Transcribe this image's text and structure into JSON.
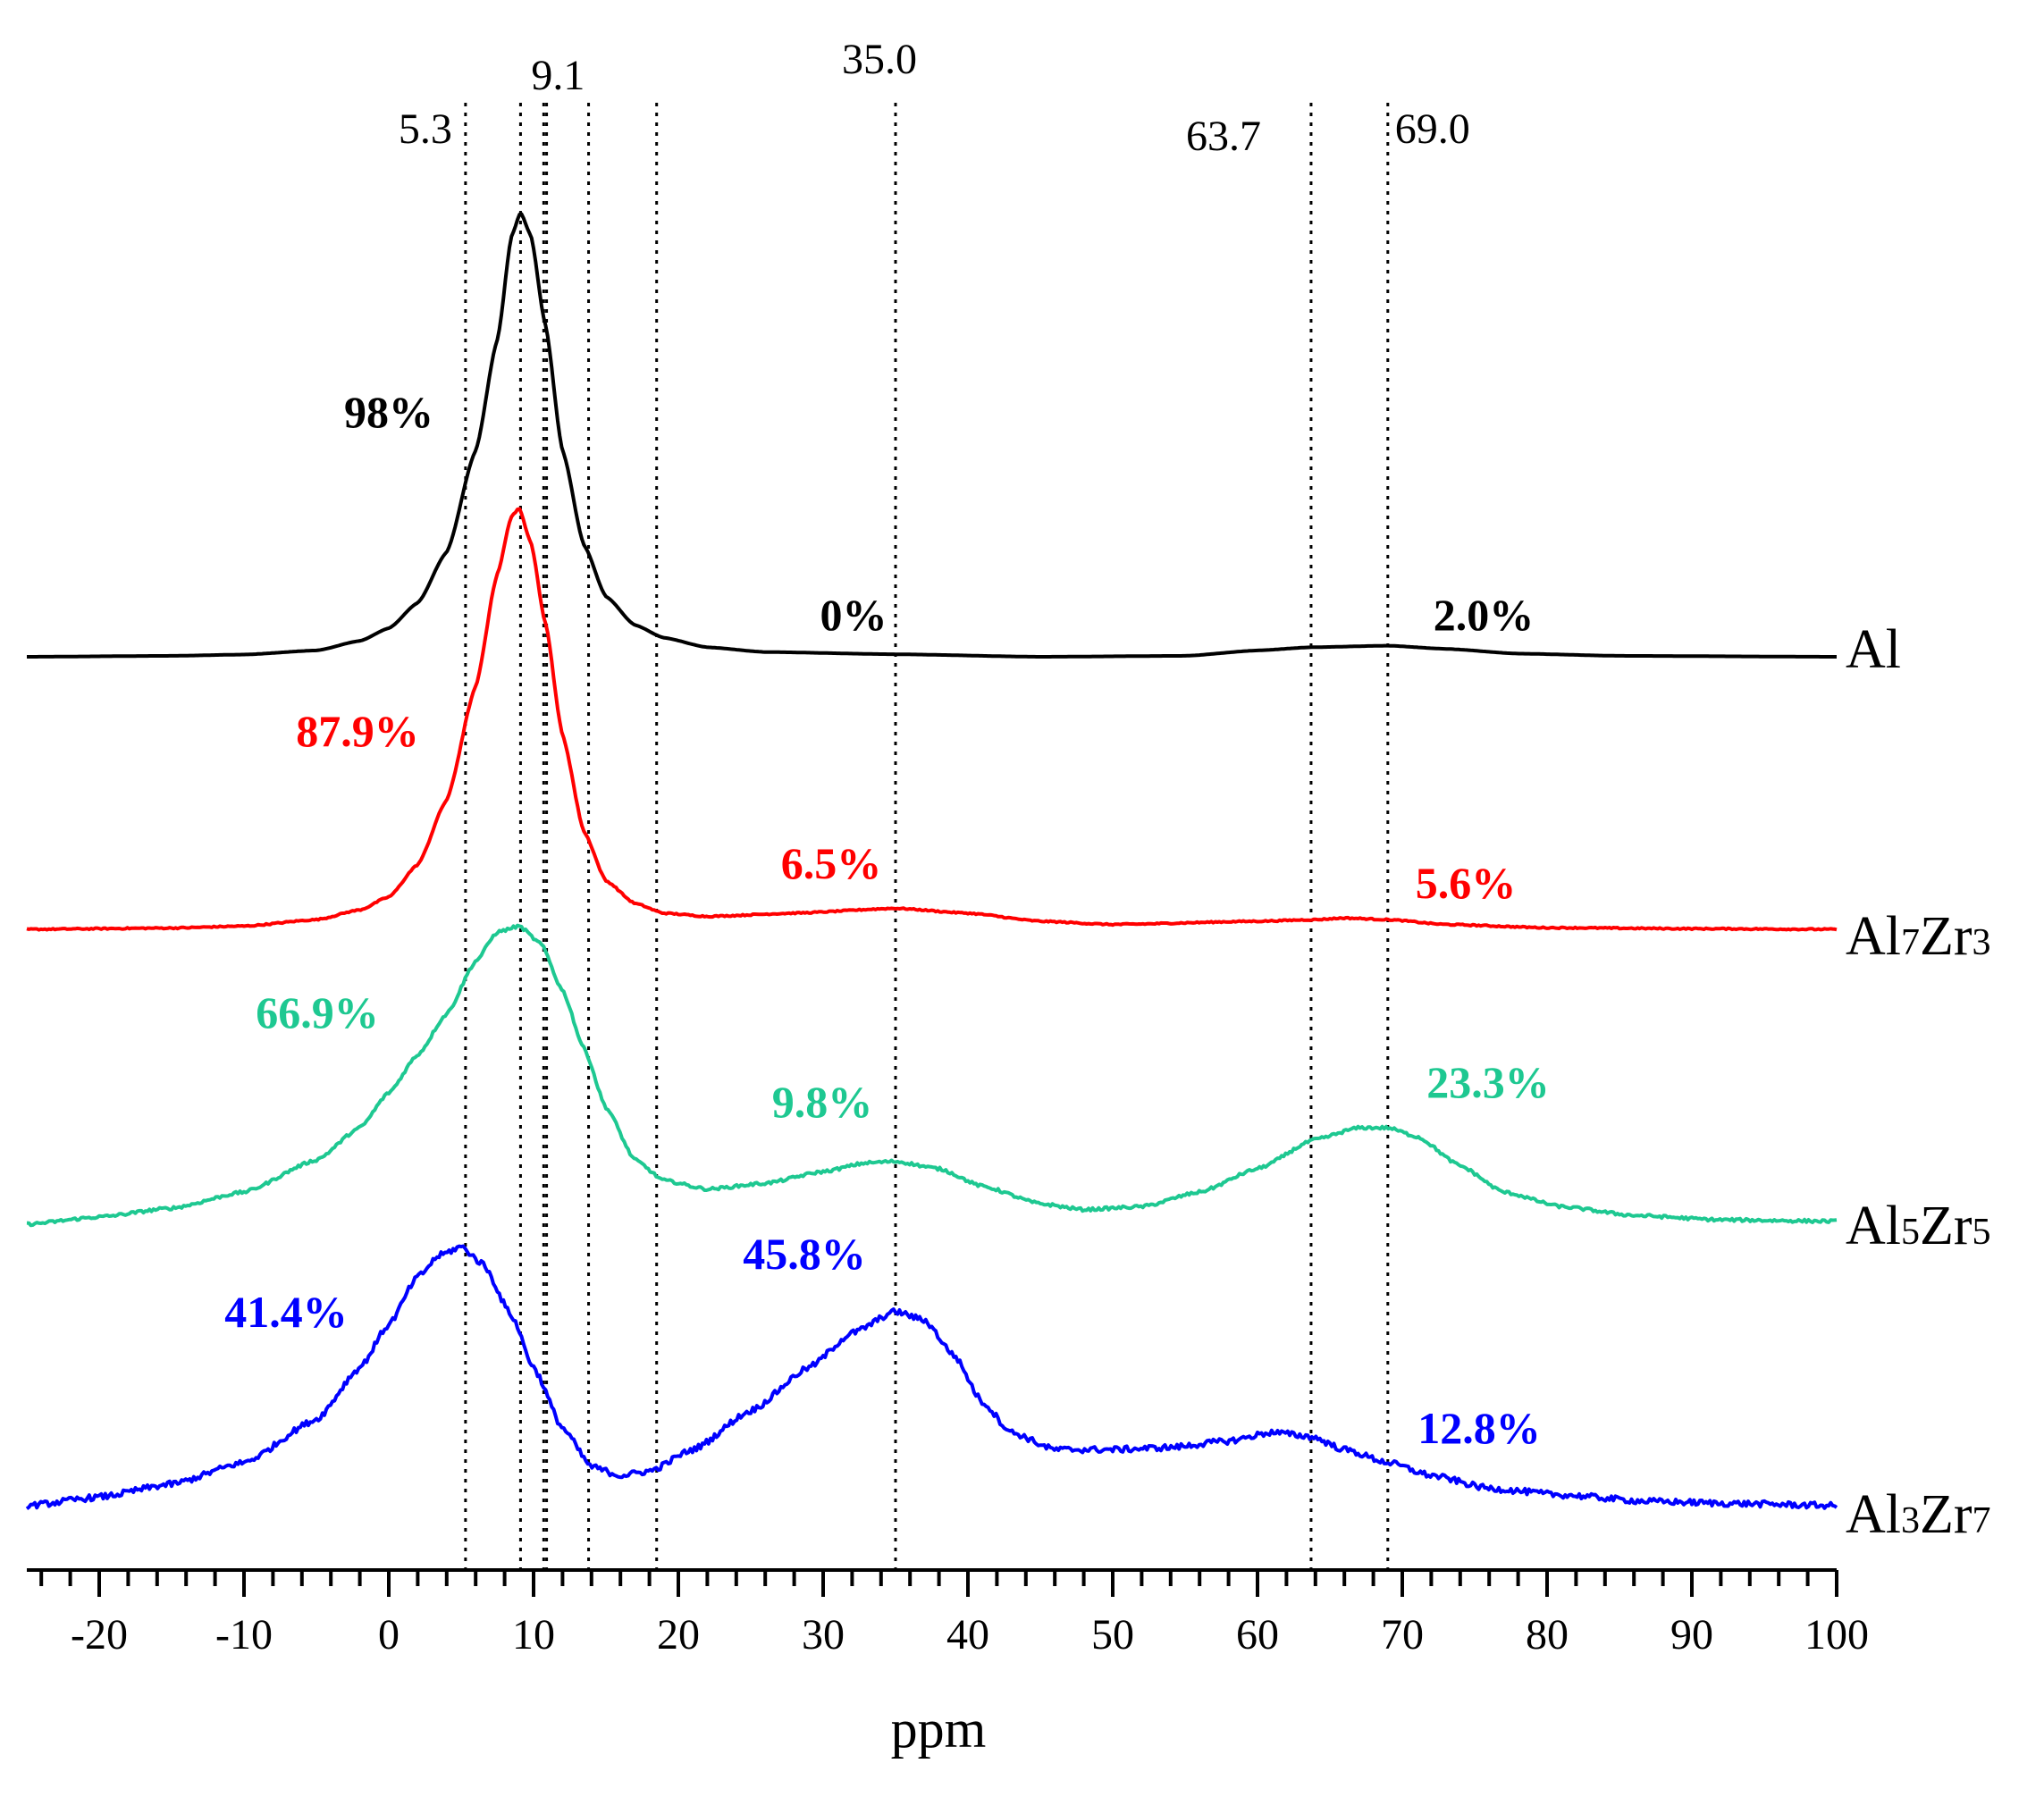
{
  "chart_data": {
    "type": "line",
    "title": "",
    "xlabel": "ppm",
    "ylabel": "",
    "xlim": [
      -25,
      100
    ],
    "x_ticks": [
      -20,
      -10,
      0,
      10,
      20,
      30,
      40,
      50,
      60,
      70,
      80,
      90,
      100
    ],
    "x_tick_labels": [
      "-20",
      "-10",
      "0",
      "10",
      "20",
      "30",
      "40",
      "50",
      "60",
      "70",
      "80",
      "90",
      "100"
    ],
    "reference_lines": [
      {
        "ppm": 5.3,
        "label": "5.3"
      },
      {
        "ppm": 9.1,
        "label": ""
      },
      {
        "ppm": 10.7,
        "label": ""
      },
      {
        "ppm": 10.9,
        "label": "9.1"
      },
      {
        "ppm": 13.8,
        "label": ""
      },
      {
        "ppm": 18.5,
        "label": ""
      },
      {
        "ppm": 35.0,
        "label": "35.0"
      },
      {
        "ppm": 63.7,
        "label": "63.7"
      },
      {
        "ppm": 69.0,
        "label": "69.0"
      }
    ],
    "series": [
      {
        "name": "Al",
        "label_main": "Al",
        "label_parts": [
          {
            "t": "Al",
            "sub": false
          }
        ],
        "color": "#000000",
        "noise": 0.0,
        "baseline": 0,
        "points": [
          [
            -25,
            0
          ],
          [
            -15,
            0.3
          ],
          [
            -10,
            0.7
          ],
          [
            -5,
            2
          ],
          [
            -2,
            5
          ],
          [
            0,
            9
          ],
          [
            2,
            17
          ],
          [
            4,
            33
          ],
          [
            6,
            65
          ],
          [
            7.5,
            100
          ],
          [
            8.5,
            133
          ],
          [
            9.1,
            140
          ],
          [
            9.8,
            133
          ],
          [
            10.8,
            105
          ],
          [
            12,
            65
          ],
          [
            13.5,
            35
          ],
          [
            15,
            19
          ],
          [
            17,
            10
          ],
          [
            19,
            6
          ],
          [
            22,
            3
          ],
          [
            26,
            1.5
          ],
          [
            35,
            0.8
          ],
          [
            45,
            0
          ],
          [
            55,
            0.3
          ],
          [
            60,
            2
          ],
          [
            63.7,
            3
          ],
          [
            69,
            3.5
          ],
          [
            73,
            2.5
          ],
          [
            78,
            1
          ],
          [
            85,
            0.3
          ],
          [
            100,
            0
          ]
        ],
        "annotations": [
          {
            "ppm": 0.5,
            "text": "98%",
            "above": 90
          },
          {
            "ppm": 32,
            "text": "0%",
            "above": 8
          },
          {
            "ppm": 75.5,
            "text": "2.0%",
            "above": 8
          }
        ]
      },
      {
        "name": "Al7Zr3",
        "label_main": "Al7Zr3",
        "label_parts": [
          {
            "t": "Al",
            "sub": false
          },
          {
            "t": "7",
            "sub": true
          },
          {
            "t": "Zr",
            "sub": false
          },
          {
            "t": "3",
            "sub": true
          }
        ],
        "color": "#ff0000",
        "noise": 0.2,
        "baseline": 0,
        "points": [
          [
            -25,
            0
          ],
          [
            -15,
            0.4
          ],
          [
            -10,
            1
          ],
          [
            -5,
            3
          ],
          [
            -2,
            6
          ],
          [
            0,
            10
          ],
          [
            2,
            20
          ],
          [
            4,
            40
          ],
          [
            6,
            75
          ],
          [
            7.5,
            110
          ],
          [
            8.5,
            128
          ],
          [
            9.0,
            130
          ],
          [
            9.8,
            120
          ],
          [
            10.8,
            95
          ],
          [
            12,
            60
          ],
          [
            13.5,
            30
          ],
          [
            15,
            15
          ],
          [
            17,
            8
          ],
          [
            19,
            5
          ],
          [
            22,
            4
          ],
          [
            28,
            5
          ],
          [
            35,
            6.5
          ],
          [
            40,
            5
          ],
          [
            45,
            2.5
          ],
          [
            50,
            1.5
          ],
          [
            60,
            2.5
          ],
          [
            64,
            3
          ],
          [
            66,
            3.5
          ],
          [
            69,
            3
          ],
          [
            73,
            1.5
          ],
          [
            80,
            0.5
          ],
          [
            90,
            0.2
          ],
          [
            100,
            0
          ]
        ],
        "annotations": [
          {
            "ppm": -2,
            "text": "87.9%",
            "above": 55
          },
          {
            "ppm": 30,
            "text": "6.5%",
            "above": 14
          },
          {
            "ppm": 74,
            "text": "5.6%",
            "above": 12
          }
        ]
      },
      {
        "name": "Al5Zr5",
        "label_main": "Al5Zr5",
        "label_parts": [
          {
            "t": "Al",
            "sub": false
          },
          {
            "t": "5",
            "sub": true
          },
          {
            "t": "Zr",
            "sub": false
          },
          {
            "t": "5",
            "sub": true
          }
        ],
        "color": "#1ec891",
        "noise": 0.5,
        "baseline": 0,
        "points": [
          [
            -25,
            0
          ],
          [
            -20,
            2.5
          ],
          [
            -15,
            5.5
          ],
          [
            -10,
            11
          ],
          [
            -5,
            22
          ],
          [
            -2,
            33
          ],
          [
            0,
            45
          ],
          [
            2,
            58
          ],
          [
            4,
            72
          ],
          [
            6,
            90
          ],
          [
            7.5,
            100
          ],
          [
            9.0,
            102
          ],
          [
            10.5,
            96
          ],
          [
            12,
            80
          ],
          [
            13.5,
            60
          ],
          [
            15,
            40
          ],
          [
            17,
            22
          ],
          [
            19,
            15
          ],
          [
            22,
            12
          ],
          [
            26,
            14
          ],
          [
            30,
            18
          ],
          [
            33,
            21
          ],
          [
            35,
            21.5
          ],
          [
            38,
            19
          ],
          [
            41,
            13
          ],
          [
            45,
            7
          ],
          [
            48,
            5
          ],
          [
            52,
            6
          ],
          [
            56,
            11
          ],
          [
            60,
            19
          ],
          [
            64,
            29
          ],
          [
            67,
            33
          ],
          [
            69,
            33
          ],
          [
            71,
            30
          ],
          [
            74,
            20
          ],
          [
            77,
            11
          ],
          [
            81,
            6
          ],
          [
            86,
            3
          ],
          [
            92,
            1.5
          ],
          [
            100,
            1
          ]
        ],
        "annotations": [
          {
            "ppm": -5,
            "text": "66.9%",
            "above": 55
          },
          {
            "ppm": 30.5,
            "text": "9.8%",
            "above": 16
          },
          {
            "ppm": 74,
            "text": "23.3%",
            "above": 14
          }
        ]
      },
      {
        "name": "Al3Zr7",
        "label_main": "Al3Zr7",
        "label_parts": [
          {
            "t": "Al",
            "sub": false
          },
          {
            "t": "3",
            "sub": true
          },
          {
            "t": "Zr",
            "sub": false
          },
          {
            "t": "7",
            "sub": true
          }
        ],
        "color": "#0000ff",
        "noise": 0.7,
        "baseline": 0,
        "points": [
          [
            -25,
            0
          ],
          [
            -20,
            2
          ],
          [
            -15,
            5
          ],
          [
            -10,
            10
          ],
          [
            -5,
            20
          ],
          [
            -2,
            32
          ],
          [
            0,
            42
          ],
          [
            2,
            53
          ],
          [
            3.5,
            58
          ],
          [
            5,
            60
          ],
          [
            6.5,
            56
          ],
          [
            8.5,
            44
          ],
          [
            10,
            32
          ],
          [
            12,
            18
          ],
          [
            14,
            9
          ],
          [
            16,
            7
          ],
          [
            18,
            8
          ],
          [
            21,
            13
          ],
          [
            25,
            22
          ],
          [
            29,
            32
          ],
          [
            32,
            40
          ],
          [
            35,
            45
          ],
          [
            37,
            43
          ],
          [
            39,
            35
          ],
          [
            41,
            24
          ],
          [
            43,
            17
          ],
          [
            46,
            13
          ],
          [
            50,
            13
          ],
          [
            54,
            13.5
          ],
          [
            58,
            15
          ],
          [
            61,
            17
          ],
          [
            63.7,
            16
          ],
          [
            66,
            13
          ],
          [
            69,
            10
          ],
          [
            72,
            7
          ],
          [
            76,
            4
          ],
          [
            81,
            2.5
          ],
          [
            87,
            1
          ],
          [
            93,
            0.5
          ],
          [
            100,
            0
          ]
        ],
        "annotations": [
          {
            "ppm": -10,
            "text": "41.4%",
            "above": 40
          },
          {
            "ppm": 30.5,
            "text": "45.8%",
            "above": 30
          },
          {
            "ppm": 74.5,
            "text": "12.8%",
            "above": 14
          }
        ]
      }
    ]
  }
}
